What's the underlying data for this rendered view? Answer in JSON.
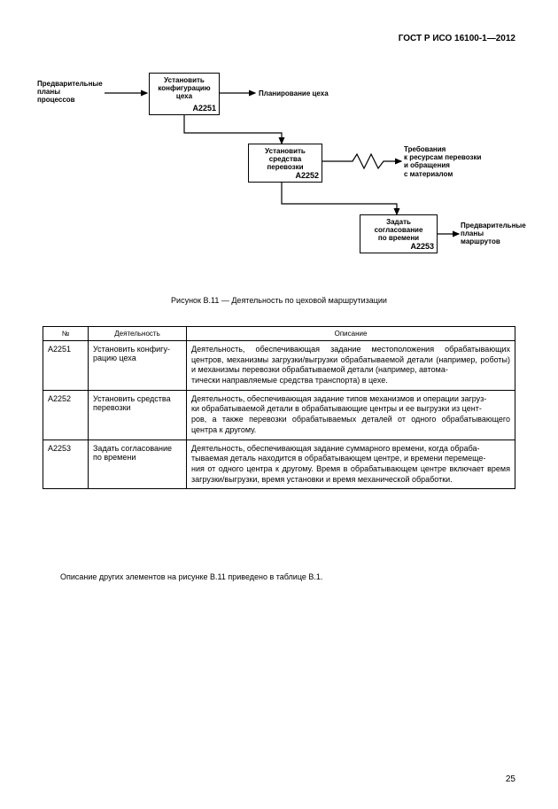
{
  "header": {
    "standard": "ГОСТ Р ИСО 16100-1—2012"
  },
  "diagram": {
    "input_left": "Предварительные\nпланы\nпроцессов",
    "node1": {
      "title": "Установить\nконфигурацию\nцеха",
      "code": "А2251"
    },
    "label_plan": "Планирование цеха",
    "node2": {
      "title": "Установить\nсредства\nперевозки",
      "code": "А2252"
    },
    "label_req": "Требования\nк ресурсам перевозки\nи обращения\nс материалом",
    "node3": {
      "title": "Задать\nсогласование\nпо времени",
      "code": "А2253"
    },
    "output_right": "Предварительные\nпланы\nмаршрутов",
    "colors": {
      "line": "#000000",
      "bg": "#ffffff"
    }
  },
  "figure_caption": "Рисунок В.11 — Деятельность по цеховой маршрутизации",
  "table": {
    "columns": [
      "№",
      "Деятельность",
      "Описание"
    ],
    "rows": [
      [
        "А2251",
        "Установить конфигу-\nрацию цеха",
        "Деятельность, обеспечивающая задание местоположения обрабатывающих центров, механизмы загрузки/выгрузки обрабатываемой детали (например, роботы) и механизмы перевозки обрабатываемой детали (например, автома-\nтически направляемые средства транспорта) в цехе."
      ],
      [
        "А2252",
        "Установить средства перевозки",
        "Деятельность, обеспечивающая задание типов механизмов и операции загруз-\nки обрабатываемой детали в обрабатывающие центры и ее выгрузки из цент-\nров, а также перевозки обрабатываемых деталей от одного обрабатывающего центра к другому."
      ],
      [
        "А2253",
        "Задать согласование по времени",
        "Деятельность, обеспечивающая задание суммарного времени, когда обраба-\nтываемая деталь находится в обрабатывающем центре, и времени перемеще-\nния от одного центра к другому. Время в обрабатывающем центре включает время загрузки/выгрузки, время установки и время механической обработки."
      ]
    ]
  },
  "body_text": "Описание других элементов на рисунке В.11 приведено в таблице В.1.",
  "page_number": "25"
}
